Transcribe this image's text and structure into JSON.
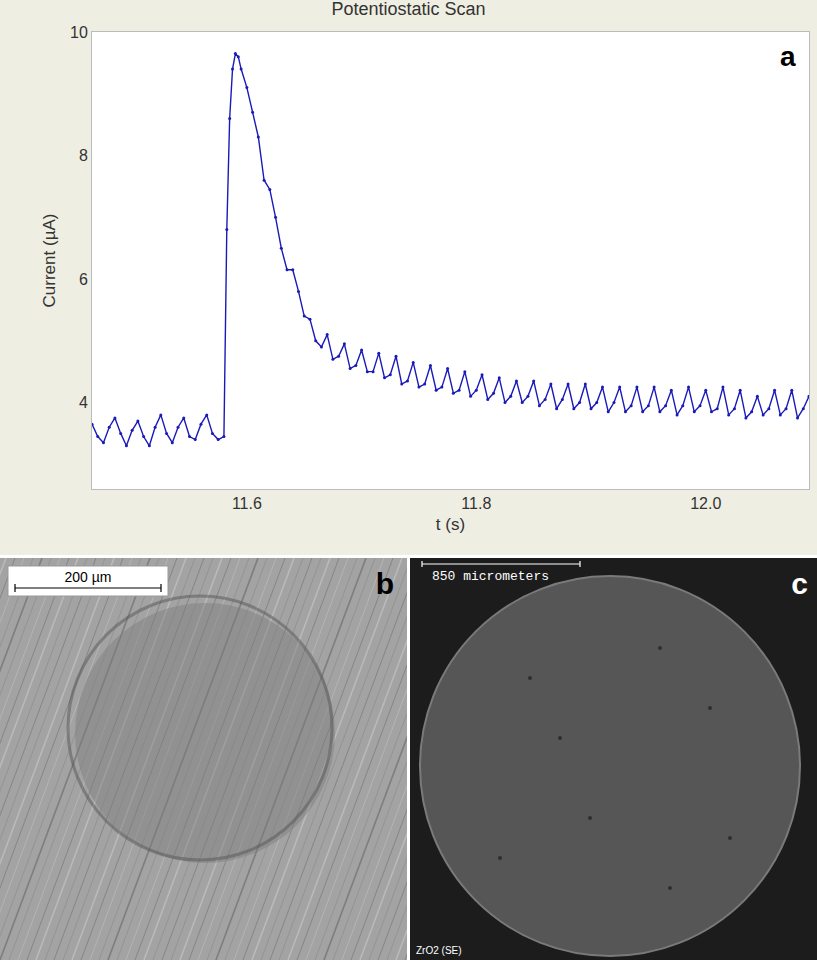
{
  "chart_data": {
    "type": "line",
    "title": "Potentiostatic Scan",
    "x_label": "t (s)",
    "y_label": "Current (µA)",
    "annotations": [
      "a"
    ],
    "color": "#1a1ab8",
    "marker": "circle",
    "line_style": "solid",
    "grid": false,
    "xlim": [
      11.465,
      12.09
    ],
    "xticks": [
      11.6,
      11.8,
      {
        "value": 12,
        "label": "12.0"
      }
    ],
    "ylim": [
      2.6,
      10
    ],
    "yticks": [
      4,
      6,
      8,
      10
    ],
    "x": [
      11.465,
      11.47,
      11.475,
      11.48,
      11.485,
      11.49,
      11.495,
      11.5,
      11.505,
      11.51,
      11.515,
      11.52,
      11.525,
      11.53,
      11.535,
      11.54,
      11.545,
      11.55,
      11.555,
      11.56,
      11.565,
      11.57,
      11.575,
      11.58,
      11.5825,
      11.585,
      11.5875,
      11.59,
      11.5925,
      11.595,
      11.6,
      11.605,
      11.61,
      11.615,
      11.62,
      11.625,
      11.63,
      11.635,
      11.64,
      11.645,
      11.65,
      11.655,
      11.66,
      11.665,
      11.67,
      11.675,
      11.68,
      11.685,
      11.69,
      11.695,
      11.7,
      11.705,
      11.71,
      11.715,
      11.72,
      11.725,
      11.73,
      11.735,
      11.74,
      11.745,
      11.75,
      11.755,
      11.76,
      11.765,
      11.77,
      11.775,
      11.78,
      11.785,
      11.79,
      11.795,
      11.8,
      11.805,
      11.81,
      11.815,
      11.82,
      11.825,
      11.83,
      11.835,
      11.84,
      11.845,
      11.85,
      11.855,
      11.86,
      11.865,
      11.87,
      11.875,
      11.88,
      11.885,
      11.89,
      11.895,
      11.9,
      11.905,
      11.91,
      11.915,
      11.92,
      11.925,
      11.93,
      11.935,
      11.94,
      11.945,
      11.95,
      11.955,
      11.96,
      11.965,
      11.97,
      11.975,
      11.98,
      11.985,
      11.99,
      11.995,
      12,
      12.005,
      12.01,
      12.015,
      12.02,
      12.025,
      12.03,
      12.035,
      12.04,
      12.045,
      12.05,
      12.055,
      12.06,
      12.065,
      12.07,
      12.075,
      12.08,
      12.085,
      12.09
    ],
    "values": [
      3.65,
      3.45,
      3.35,
      3.6,
      3.75,
      3.5,
      3.3,
      3.55,
      3.7,
      3.45,
      3.3,
      3.6,
      3.8,
      3.5,
      3.35,
      3.6,
      3.75,
      3.45,
      3.4,
      3.65,
      3.8,
      3.5,
      3.4,
      3.45,
      6.8,
      8.6,
      9.4,
      9.65,
      9.6,
      9.4,
      9.1,
      8.7,
      8.3,
      7.6,
      7.45,
      7.0,
      6.5,
      6.15,
      6.15,
      5.8,
      5.4,
      5.35,
      5.0,
      4.9,
      5.1,
      4.7,
      4.75,
      4.95,
      4.55,
      4.6,
      4.85,
      4.5,
      4.5,
      4.8,
      4.4,
      4.45,
      4.75,
      4.3,
      4.35,
      4.65,
      4.25,
      4.3,
      4.6,
      4.2,
      4.25,
      4.55,
      4.15,
      4.2,
      4.5,
      4.1,
      4.2,
      4.45,
      4.05,
      4.15,
      4.4,
      4.0,
      4.1,
      4.35,
      4.0,
      4.1,
      4.35,
      3.95,
      4.05,
      4.3,
      3.9,
      4.05,
      4.3,
      3.9,
      4.0,
      4.3,
      3.9,
      4.0,
      4.25,
      3.85,
      4.0,
      4.25,
      3.85,
      3.95,
      4.25,
      3.85,
      3.95,
      4.25,
      3.85,
      3.95,
      4.2,
      3.8,
      3.95,
      4.25,
      3.85,
      3.95,
      4.2,
      3.85,
      3.9,
      4.25,
      3.8,
      3.9,
      4.2,
      3.75,
      3.85,
      4.1,
      3.8,
      3.9,
      4.2,
      3.8,
      3.9,
      4.2,
      3.75,
      3.9,
      4.1
    ]
  },
  "images": [
    {
      "letter": "b",
      "scale_bar": "200 µm"
    },
    {
      "letter": "c",
      "scale_bar": "850 micrometers",
      "caption": "ZrO2 (SE)"
    }
  ]
}
